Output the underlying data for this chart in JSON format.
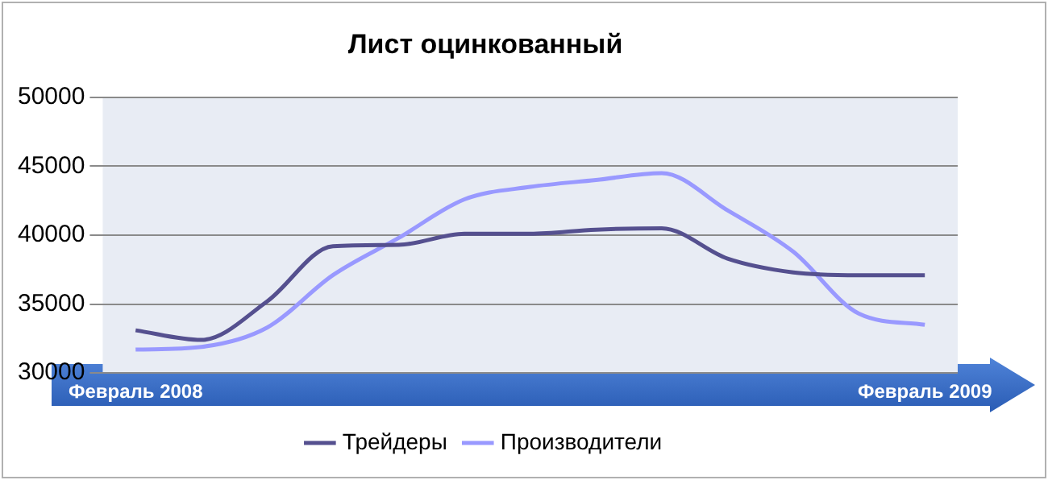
{
  "chart_data": {
    "type": "line",
    "title": "Лист оцинкованный",
    "categories": [
      "Февраль 2008",
      null,
      null,
      null,
      null,
      null,
      null,
      null,
      null,
      null,
      null,
      null,
      "Февраль 2009"
    ],
    "series": [
      {
        "name": "Трейдеры",
        "color": "#55508f",
        "values": [
          33100,
          32400,
          35200,
          39200,
          39300,
          40100,
          40100,
          40400,
          40500,
          38300,
          37300,
          37100,
          37100
        ]
      },
      {
        "name": "Производители",
        "color": "#9999ff",
        "values": [
          31700,
          31900,
          33300,
          37100,
          39800,
          42600,
          43500,
          44000,
          44500,
          41800,
          38800,
          34300,
          33500
        ]
      }
    ],
    "ylim": [
      30000,
      50000
    ],
    "yticks": [
      30000,
      35000,
      40000,
      45000,
      50000
    ],
    "grid": "y",
    "legend": "bottom",
    "marker": "none",
    "line_style": "solid"
  }
}
